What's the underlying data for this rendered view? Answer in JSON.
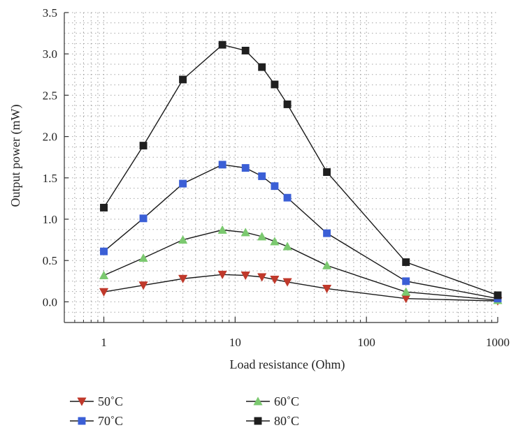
{
  "chart_data": {
    "type": "line",
    "title": "",
    "xlabel": "Load resistance (Ohm)",
    "ylabel": "Output power (mW)",
    "xscale": "log",
    "xlim": [
      0.5,
      1000
    ],
    "ylim": [
      -0.25,
      3.5
    ],
    "grid": true,
    "legend_position": "bottom",
    "x": [
      1,
      2,
      4,
      8,
      12,
      16,
      20,
      25,
      50,
      200,
      1000
    ],
    "xticks": [
      1,
      10,
      100,
      1000
    ],
    "xtick_labels": [
      "1",
      "10",
      "100",
      "1000"
    ],
    "yticks": [
      0.0,
      0.5,
      1.0,
      1.5,
      2.0,
      2.5,
      3.0,
      3.5
    ],
    "ytick_labels": [
      "0.0",
      "0.5",
      "1.0",
      "1.5",
      "2.0",
      "2.5",
      "3.0",
      "3.5"
    ],
    "series": [
      {
        "name": "50˚C",
        "marker": "triangle-down",
        "color": "#c0392b",
        "values": [
          0.12,
          0.2,
          0.28,
          0.33,
          0.32,
          0.3,
          0.27,
          0.24,
          0.16,
          0.04,
          0.01
        ]
      },
      {
        "name": "60˚C",
        "marker": "triangle-up",
        "color": "#7bc96f",
        "values": [
          0.32,
          0.53,
          0.75,
          0.87,
          0.84,
          0.79,
          0.73,
          0.67,
          0.44,
          0.12,
          0.02
        ]
      },
      {
        "name": "70˚C",
        "marker": "square",
        "color": "#3b5fd6",
        "values": [
          0.61,
          1.01,
          1.43,
          1.66,
          1.62,
          1.52,
          1.4,
          1.26,
          0.83,
          0.25,
          0.04
        ]
      },
      {
        "name": "80˚C",
        "marker": "square",
        "color": "#1f1f1f",
        "values": [
          1.14,
          1.89,
          2.69,
          3.11,
          3.04,
          2.84,
          2.63,
          2.39,
          1.57,
          0.48,
          0.08
        ]
      }
    ],
    "legend_order": [
      0,
      2,
      1,
      3
    ],
    "line_color": "#1a1a1a"
  }
}
